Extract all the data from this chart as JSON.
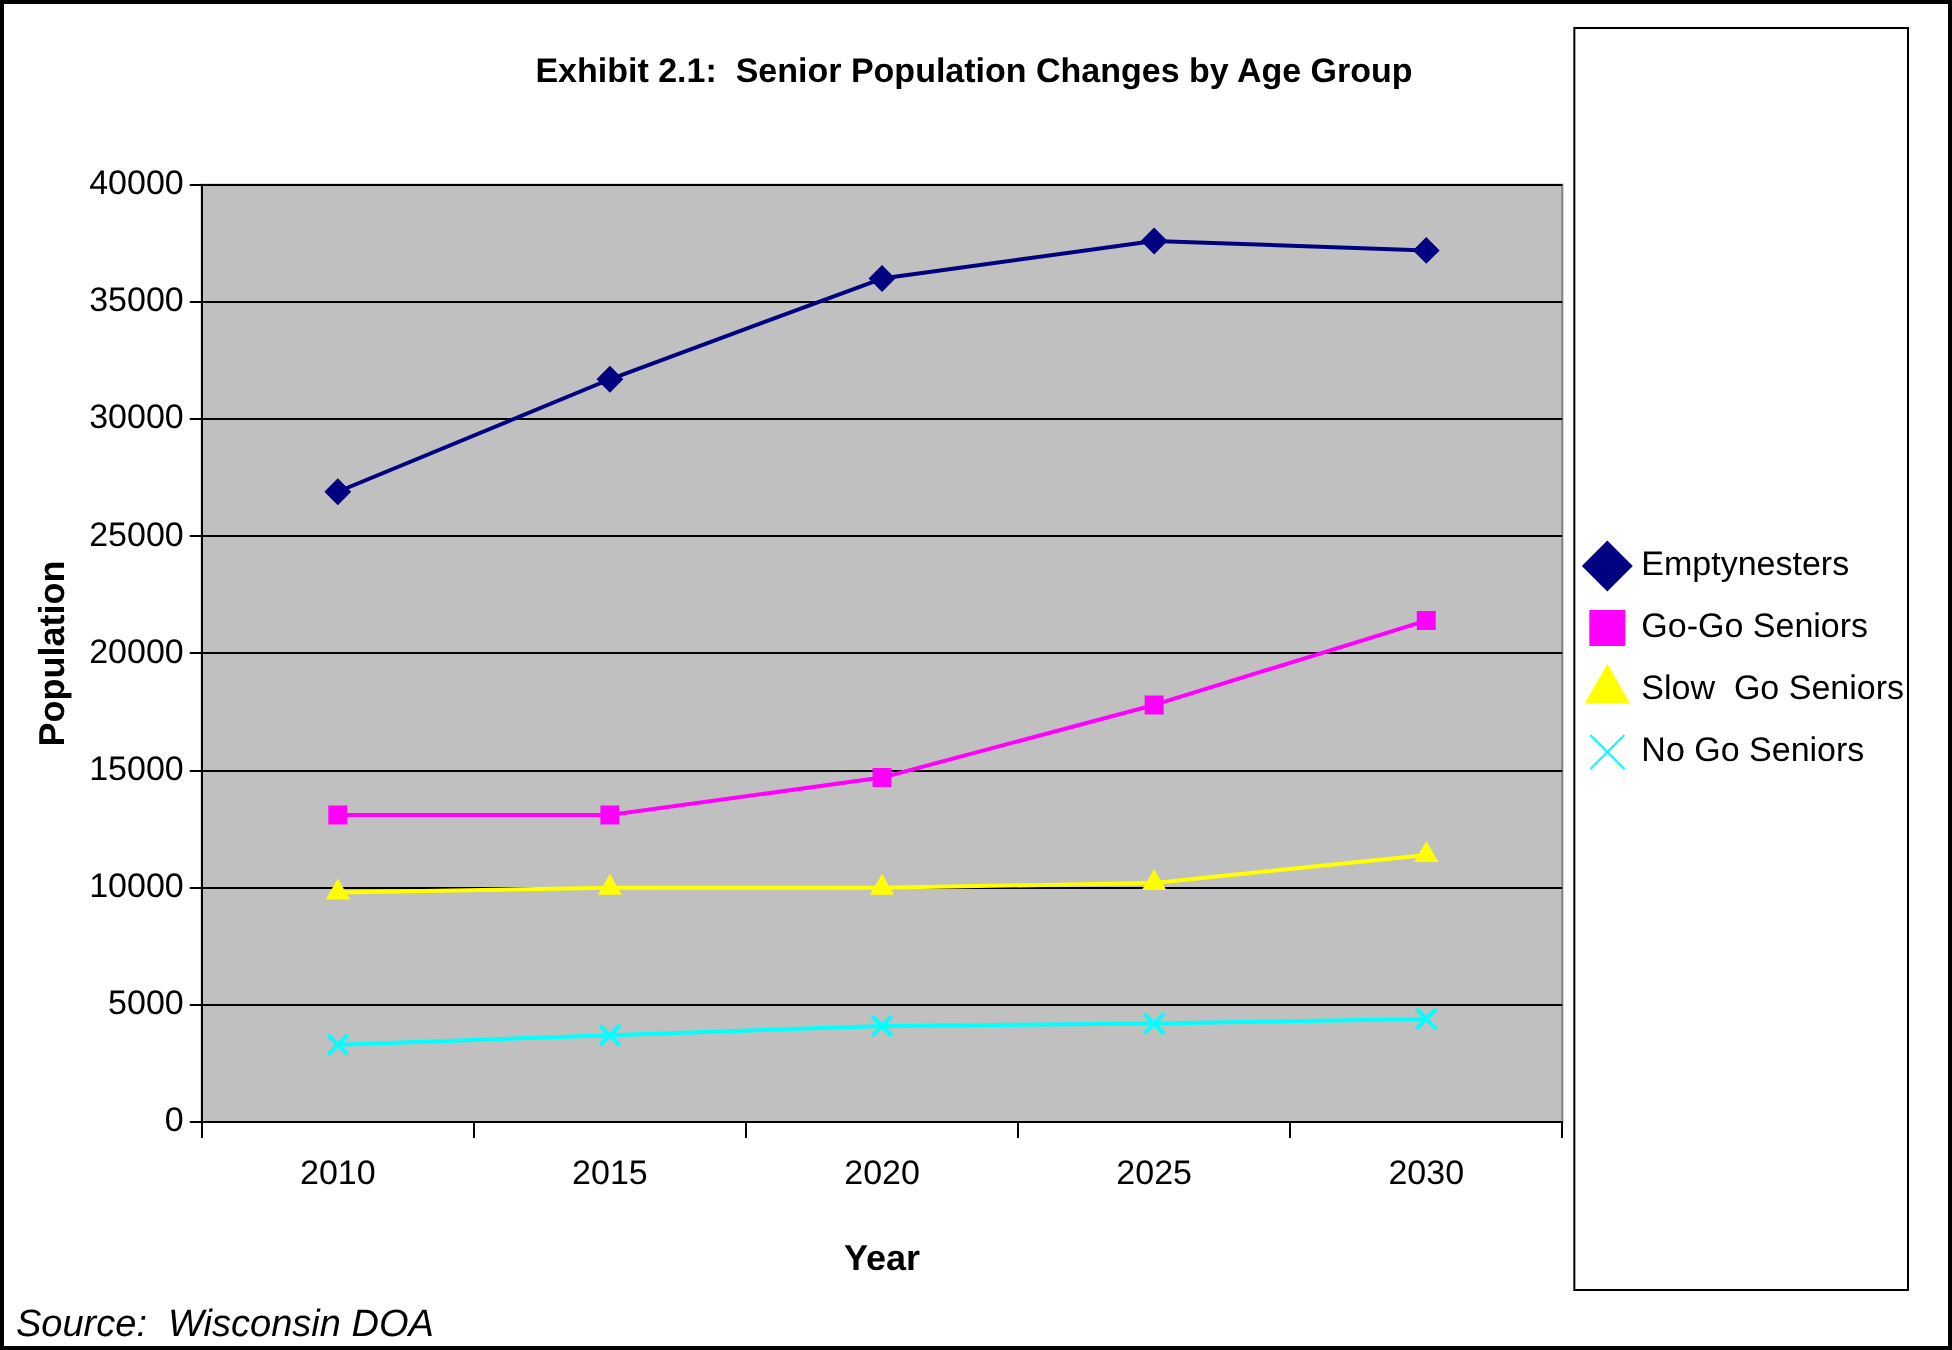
{
  "chart_data": {
    "type": "line",
    "title": "Exhibit 2.1:  Senior Population Changes by Age Group",
    "xlabel": "Year",
    "ylabel": "Population",
    "categories": [
      "2010",
      "2015",
      "2020",
      "2025",
      "2030"
    ],
    "series": [
      {
        "name": "Emptynesters",
        "color": "#000080",
        "marker": "diamond",
        "values": [
          26900,
          31700,
          36000,
          37600,
          37200
        ]
      },
      {
        "name": "Go-Go Seniors",
        "color": "#ff00ff",
        "marker": "square",
        "values": [
          13100,
          13100,
          14700,
          17800,
          21400
        ]
      },
      {
        "name": "Slow  Go Seniors",
        "color": "#ffff00",
        "marker": "triangle",
        "values": [
          9800,
          10000,
          10000,
          10200,
          11400
        ]
      },
      {
        "name": "No Go Seniors",
        "color": "#00ffff",
        "marker": "cross",
        "values": [
          3300,
          3700,
          4100,
          4200,
          4400
        ]
      }
    ],
    "ylim": [
      0,
      40000
    ],
    "yticks": [
      0,
      5000,
      10000,
      15000,
      20000,
      25000,
      30000,
      35000,
      40000
    ],
    "grid": "y",
    "legend": "right",
    "annotations": [
      "Source:  Wisconsin DOA"
    ]
  }
}
